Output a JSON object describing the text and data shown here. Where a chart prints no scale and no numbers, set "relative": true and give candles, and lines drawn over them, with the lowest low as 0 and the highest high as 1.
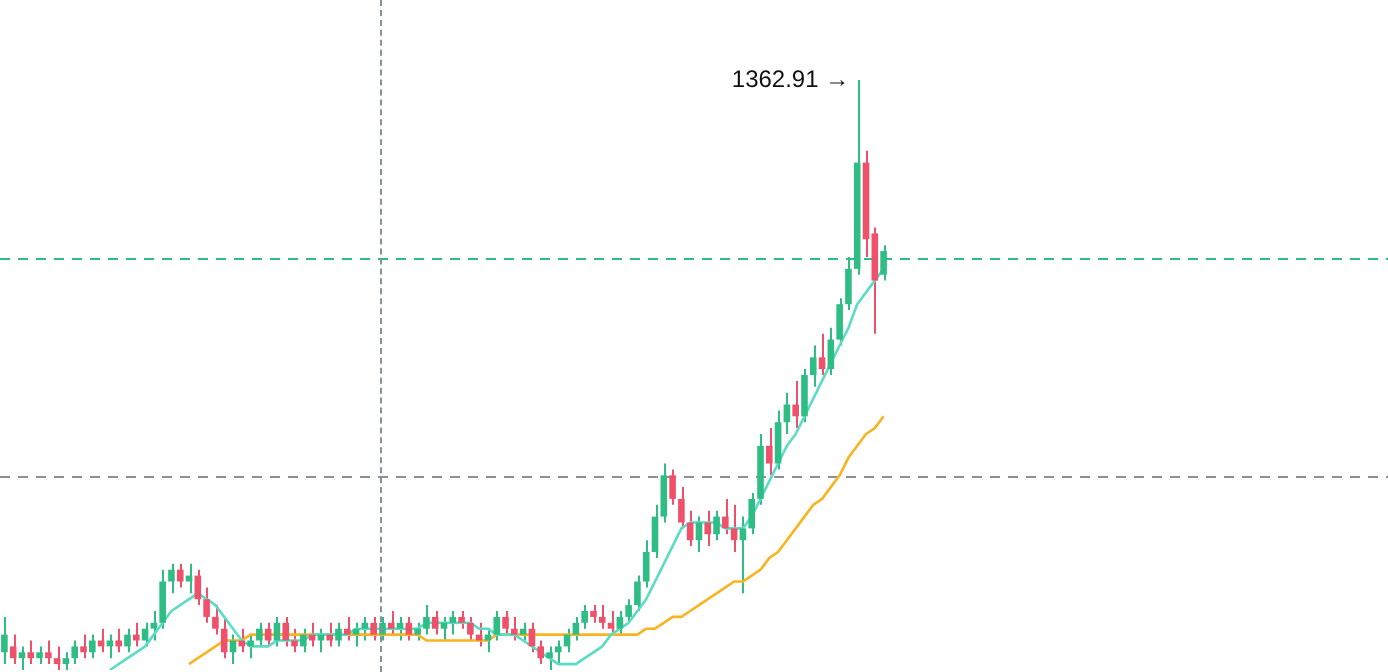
{
  "chart_data": {
    "type": "candlestick",
    "relative": true,
    "categories": [
      null,
      null,
      null,
      null,
      null,
      null,
      null,
      null,
      null,
      null,
      null,
      null,
      null,
      null,
      null,
      null,
      null,
      null,
      null,
      null,
      null,
      null,
      null,
      null,
      null,
      null,
      null,
      null,
      null,
      null,
      null,
      null,
      null,
      null,
      null,
      null,
      null,
      null,
      null,
      null,
      null,
      null,
      null,
      null,
      null,
      null,
      null,
      null,
      null,
      null,
      null,
      null,
      null,
      null,
      null,
      null,
      null,
      null,
      null,
      null,
      null,
      null,
      null,
      null,
      null,
      null,
      null,
      null,
      null,
      null,
      null,
      null,
      null,
      null,
      null,
      null,
      null,
      null,
      null,
      null,
      null,
      null,
      null,
      null,
      null,
      null,
      null,
      null,
      null,
      null,
      null,
      null,
      null,
      null,
      null,
      null,
      null,
      null,
      null,
      null,
      null
    ],
    "series": [
      {
        "ohlc": [
          [
            0.03,
            0.09,
            0.01,
            0.06
          ],
          [
            0.04,
            0.06,
            0.01,
            0.02
          ],
          [
            0.02,
            0.04,
            0.0,
            0.03
          ],
          [
            0.03,
            0.05,
            0.01,
            0.02
          ],
          [
            0.02,
            0.04,
            0.01,
            0.03
          ],
          [
            0.03,
            0.05,
            0.01,
            0.02
          ],
          [
            0.02,
            0.04,
            0.0,
            0.01
          ],
          [
            0.01,
            0.03,
            0.0,
            0.02
          ],
          [
            0.02,
            0.05,
            0.01,
            0.04
          ],
          [
            0.04,
            0.06,
            0.02,
            0.03
          ],
          [
            0.03,
            0.06,
            0.02,
            0.05
          ],
          [
            0.05,
            0.07,
            0.03,
            0.04
          ],
          [
            0.04,
            0.06,
            0.02,
            0.05
          ],
          [
            0.05,
            0.07,
            0.03,
            0.04
          ],
          [
            0.04,
            0.07,
            0.03,
            0.06
          ],
          [
            0.06,
            0.08,
            0.04,
            0.05
          ],
          [
            0.05,
            0.08,
            0.04,
            0.07
          ],
          [
            0.07,
            0.1,
            0.05,
            0.08
          ],
          [
            0.08,
            0.17,
            0.07,
            0.15
          ],
          [
            0.15,
            0.18,
            0.13,
            0.17
          ],
          [
            0.17,
            0.18,
            0.14,
            0.15
          ],
          [
            0.15,
            0.18,
            0.13,
            0.16
          ],
          [
            0.16,
            0.17,
            0.11,
            0.12
          ],
          [
            0.12,
            0.14,
            0.08,
            0.09
          ],
          [
            0.09,
            0.11,
            0.06,
            0.07
          ],
          [
            0.07,
            0.09,
            0.02,
            0.03
          ],
          [
            0.03,
            0.06,
            0.01,
            0.05
          ],
          [
            0.05,
            0.07,
            0.03,
            0.04
          ],
          [
            0.04,
            0.06,
            0.02,
            0.05
          ],
          [
            0.05,
            0.08,
            0.04,
            0.07
          ],
          [
            0.07,
            0.08,
            0.04,
            0.05
          ],
          [
            0.05,
            0.09,
            0.04,
            0.08
          ],
          [
            0.08,
            0.09,
            0.04,
            0.05
          ],
          [
            0.05,
            0.07,
            0.03,
            0.04
          ],
          [
            0.04,
            0.07,
            0.03,
            0.06
          ],
          [
            0.06,
            0.08,
            0.04,
            0.05
          ],
          [
            0.05,
            0.07,
            0.03,
            0.06
          ],
          [
            0.06,
            0.08,
            0.04,
            0.05
          ],
          [
            0.05,
            0.08,
            0.04,
            0.07
          ],
          [
            0.07,
            0.09,
            0.05,
            0.06
          ],
          [
            0.06,
            0.08,
            0.04,
            0.07
          ],
          [
            0.07,
            0.09,
            0.05,
            0.08
          ],
          [
            0.08,
            0.09,
            0.05,
            0.06
          ],
          [
            0.06,
            0.09,
            0.05,
            0.08
          ],
          [
            0.08,
            0.1,
            0.06,
            0.07
          ],
          [
            0.07,
            0.09,
            0.05,
            0.08
          ],
          [
            0.08,
            0.09,
            0.05,
            0.06
          ],
          [
            0.06,
            0.08,
            0.05,
            0.07
          ],
          [
            0.07,
            0.11,
            0.06,
            0.09
          ],
          [
            0.09,
            0.1,
            0.06,
            0.07
          ],
          [
            0.07,
            0.09,
            0.05,
            0.08
          ],
          [
            0.08,
            0.1,
            0.06,
            0.09
          ],
          [
            0.09,
            0.1,
            0.07,
            0.08
          ],
          [
            0.08,
            0.09,
            0.05,
            0.06
          ],
          [
            0.06,
            0.08,
            0.04,
            0.05
          ],
          [
            0.05,
            0.07,
            0.03,
            0.06
          ],
          [
            0.06,
            0.1,
            0.05,
            0.09
          ],
          [
            0.09,
            0.1,
            0.06,
            0.07
          ],
          [
            0.07,
            0.09,
            0.05,
            0.06
          ],
          [
            0.06,
            0.08,
            0.05,
            0.07
          ],
          [
            0.07,
            0.08,
            0.03,
            0.04
          ],
          [
            0.04,
            0.05,
            0.01,
            0.02
          ],
          [
            0.02,
            0.04,
            0.0,
            0.03
          ],
          [
            0.03,
            0.05,
            0.01,
            0.04
          ],
          [
            0.04,
            0.07,
            0.03,
            0.06
          ],
          [
            0.06,
            0.09,
            0.05,
            0.08
          ],
          [
            0.08,
            0.11,
            0.07,
            0.1
          ],
          [
            0.1,
            0.11,
            0.08,
            0.09
          ],
          [
            0.09,
            0.11,
            0.07,
            0.08
          ],
          [
            0.08,
            0.1,
            0.06,
            0.07
          ],
          [
            0.07,
            0.1,
            0.06,
            0.09
          ],
          [
            0.09,
            0.12,
            0.08,
            0.11
          ],
          [
            0.11,
            0.16,
            0.1,
            0.15
          ],
          [
            0.15,
            0.22,
            0.14,
            0.2
          ],
          [
            0.2,
            0.28,
            0.19,
            0.26
          ],
          [
            0.26,
            0.35,
            0.25,
            0.33
          ],
          [
            0.33,
            0.34,
            0.28,
            0.29
          ],
          [
            0.29,
            0.31,
            0.24,
            0.25
          ],
          [
            0.25,
            0.27,
            0.21,
            0.22
          ],
          [
            0.22,
            0.26,
            0.2,
            0.25
          ],
          [
            0.25,
            0.27,
            0.21,
            0.23
          ],
          [
            0.23,
            0.27,
            0.22,
            0.26
          ],
          [
            0.26,
            0.29,
            0.23,
            0.24
          ],
          [
            0.24,
            0.28,
            0.2,
            0.22
          ],
          [
            0.22,
            0.26,
            0.13,
            0.24
          ],
          [
            0.24,
            0.3,
            0.23,
            0.29
          ],
          [
            0.29,
            0.4,
            0.28,
            0.38
          ],
          [
            0.38,
            0.41,
            0.33,
            0.35
          ],
          [
            0.35,
            0.44,
            0.34,
            0.42
          ],
          [
            0.42,
            0.47,
            0.4,
            0.45
          ],
          [
            0.45,
            0.49,
            0.41,
            0.43
          ],
          [
            0.43,
            0.51,
            0.42,
            0.5
          ],
          [
            0.5,
            0.55,
            0.48,
            0.53
          ],
          [
            0.53,
            0.57,
            0.5,
            0.51
          ],
          [
            0.51,
            0.58,
            0.5,
            0.56
          ],
          [
            0.56,
            0.63,
            0.55,
            0.62
          ],
          [
            0.62,
            0.7,
            0.61,
            0.68
          ],
          [
            0.68,
            1.0,
            0.67,
            0.86
          ],
          [
            0.86,
            0.88,
            0.7,
            0.73
          ],
          [
            0.74,
            0.75,
            0.57,
            0.66
          ],
          [
            0.67,
            0.72,
            0.66,
            0.71
          ]
        ],
        "colors": [
          "#2ebd85",
          "#f0516a",
          "#2ebd85",
          "#f0516a",
          "#2ebd85",
          "#f0516a",
          "#f0516a",
          "#2ebd85",
          "#2ebd85",
          "#f0516a",
          "#2ebd85",
          "#f0516a",
          "#2ebd85",
          "#f0516a",
          "#2ebd85",
          "#f0516a",
          "#2ebd85",
          "#2ebd85",
          "#2ebd85",
          "#2ebd85",
          "#f0516a",
          "#2ebd85",
          "#f0516a",
          "#f0516a",
          "#f0516a",
          "#f0516a",
          "#2ebd85",
          "#f0516a",
          "#2ebd85",
          "#2ebd85",
          "#f0516a",
          "#2ebd85",
          "#f0516a",
          "#f0516a",
          "#2ebd85",
          "#f0516a",
          "#2ebd85",
          "#f0516a",
          "#2ebd85",
          "#f0516a",
          "#2ebd85",
          "#2ebd85",
          "#f0516a",
          "#2ebd85",
          "#f0516a",
          "#2ebd85",
          "#f0516a",
          "#2ebd85",
          "#2ebd85",
          "#f0516a",
          "#2ebd85",
          "#2ebd85",
          "#f0516a",
          "#f0516a",
          "#f0516a",
          "#2ebd85",
          "#2ebd85",
          "#f0516a",
          "#f0516a",
          "#2ebd85",
          "#f0516a",
          "#f0516a",
          "#2ebd85",
          "#2ebd85",
          "#2ebd85",
          "#2ebd85",
          "#2ebd85",
          "#f0516a",
          "#f0516a",
          "#f0516a",
          "#2ebd85",
          "#2ebd85",
          "#2ebd85",
          "#2ebd85",
          "#2ebd85",
          "#2ebd85",
          "#f0516a",
          "#f0516a",
          "#f0516a",
          "#2ebd85",
          "#f0516a",
          "#2ebd85",
          "#f0516a",
          "#f0516a",
          "#2ebd85",
          "#2ebd85",
          "#2ebd85",
          "#f0516a",
          "#2ebd85",
          "#2ebd85",
          "#f0516a",
          "#2ebd85",
          "#2ebd85",
          "#f0516a",
          "#2ebd85",
          "#2ebd85",
          "#2ebd85",
          "#2ebd85",
          "#f0516a",
          "#f0516a",
          "#2ebd85"
        ]
      },
      {
        "type": "line",
        "color": "#5cdcc4",
        "values": [
          null,
          null,
          null,
          null,
          null,
          null,
          null,
          null,
          null,
          null,
          null,
          null,
          0.0,
          0.01,
          0.02,
          0.03,
          0.04,
          0.06,
          0.08,
          0.1,
          0.11,
          0.12,
          0.13,
          0.12,
          0.11,
          0.09,
          0.07,
          0.05,
          0.04,
          0.04,
          0.04,
          0.05,
          0.05,
          0.05,
          0.05,
          0.06,
          0.06,
          0.06,
          0.06,
          0.06,
          0.07,
          0.07,
          0.07,
          0.07,
          0.07,
          0.07,
          0.07,
          0.07,
          0.08,
          0.08,
          0.08,
          0.08,
          0.08,
          0.08,
          0.07,
          0.07,
          0.06,
          0.06,
          0.06,
          0.05,
          0.04,
          0.03,
          0.02,
          0.01,
          0.01,
          0.01,
          0.02,
          0.03,
          0.04,
          0.06,
          0.07,
          0.08,
          0.1,
          0.12,
          0.15,
          0.18,
          0.21,
          0.24,
          0.25,
          0.25,
          0.25,
          0.25,
          0.24,
          0.24,
          0.24,
          0.26,
          0.29,
          0.32,
          0.35,
          0.38,
          0.4,
          0.43,
          0.46,
          0.49,
          0.52,
          0.55,
          0.58,
          0.62,
          0.64,
          0.66,
          0.68
        ]
      },
      {
        "type": "line",
        "color": "#f9b424",
        "values": [
          null,
          null,
          null,
          null,
          null,
          null,
          null,
          null,
          null,
          null,
          null,
          null,
          null,
          null,
          null,
          null,
          null,
          null,
          null,
          null,
          null,
          0.01,
          0.02,
          0.03,
          0.04,
          0.05,
          0.05,
          0.05,
          0.06,
          0.06,
          0.06,
          0.06,
          0.06,
          0.06,
          0.06,
          0.06,
          0.06,
          0.06,
          0.06,
          0.06,
          0.06,
          0.06,
          0.06,
          0.06,
          0.06,
          0.06,
          0.06,
          0.06,
          0.05,
          0.05,
          0.05,
          0.05,
          0.05,
          0.05,
          0.05,
          0.05,
          0.06,
          0.06,
          0.06,
          0.06,
          0.06,
          0.06,
          0.06,
          0.06,
          0.06,
          0.06,
          0.06,
          0.06,
          0.06,
          0.06,
          0.06,
          0.06,
          0.06,
          0.07,
          0.07,
          0.08,
          0.09,
          0.09,
          0.1,
          0.11,
          0.12,
          0.13,
          0.14,
          0.15,
          0.15,
          0.16,
          0.17,
          0.19,
          0.2,
          0.22,
          0.24,
          0.26,
          0.28,
          0.29,
          0.31,
          0.33,
          0.36,
          0.38,
          0.4,
          0.41,
          0.43
        ]
      }
    ],
    "ref_lines": [
      {
        "axis": "y",
        "value": 0.7,
        "color": "#2ebd85",
        "line_style": "dashed"
      },
      {
        "axis": "y",
        "value": 0.33,
        "color": "#8a8f9c",
        "line_style": "dashed"
      }
    ],
    "annotations": [
      "1362.91 →"
    ]
  }
}
